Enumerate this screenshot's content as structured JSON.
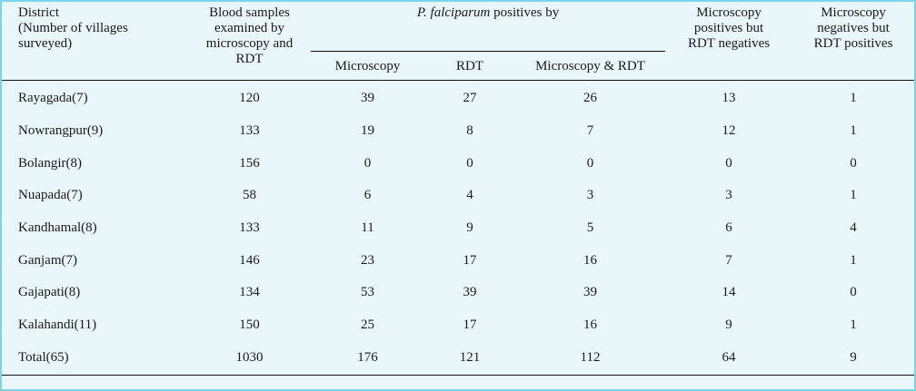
{
  "table": {
    "headers": {
      "district": [
        "District",
        "(Number of villages",
        "surveyed)"
      ],
      "samples": [
        "Blood samples",
        "examined by",
        "microscopy and",
        "RDT"
      ],
      "group_italic": "P. falciparum",
      "group_rest": " positives by",
      "sub": [
        "Microscopy",
        "RDT",
        "Microscopy & RDT"
      ],
      "micro_pos": [
        "Microscopy",
        "positives but",
        "RDT negatives"
      ],
      "micro_neg": [
        "Microscopy",
        "negatives but",
        "RDT positives"
      ]
    },
    "rows": [
      [
        "Rayagada(7)",
        "120",
        "39",
        "27",
        "26",
        "13",
        "1"
      ],
      [
        "Nowrangpur(9)",
        "133",
        "19",
        "8",
        "7",
        "12",
        "1"
      ],
      [
        "Bolangir(8)",
        "156",
        "0",
        "0",
        "0",
        "0",
        "0"
      ],
      [
        "Nuapada(7)",
        "58",
        "6",
        "4",
        "3",
        "3",
        "1"
      ],
      [
        "Kandhamal(8)",
        "133",
        "11",
        "9",
        "5",
        "6",
        "4"
      ],
      [
        "Ganjam(7)",
        "146",
        "23",
        "17",
        "16",
        "7",
        "1"
      ],
      [
        "Gajapati(8)",
        "134",
        "53",
        "39",
        "39",
        "14",
        "0"
      ],
      [
        "Kalahandi(11)",
        "150",
        "25",
        "17",
        "16",
        "9",
        "1"
      ],
      [
        "Total(65)",
        "1030",
        "176",
        "121",
        "112",
        "64",
        "9"
      ]
    ]
  }
}
